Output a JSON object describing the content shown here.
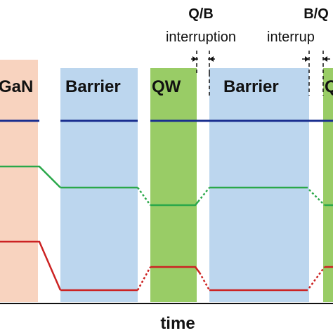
{
  "colors": {
    "gan_region": "#f8d3bf",
    "barrier_region": "#bcd6ee",
    "qw_region": "#99cc66",
    "line_blue": "#1a2f8f",
    "line_green": "#2aa84a",
    "line_red": "#cc2222",
    "axis": "#111111"
  },
  "regions": [
    {
      "key": "gan",
      "label": "GaN",
      "color_key": "gan_region"
    },
    {
      "key": "barrier1",
      "label": "Barrier",
      "color_key": "barrier_region"
    },
    {
      "key": "qw1",
      "label": "QW",
      "color_key": "qw_region"
    },
    {
      "key": "barrier2",
      "label": "Barrier",
      "color_key": "barrier_region"
    },
    {
      "key": "qw2",
      "label": "Q",
      "color_key": "qw_region"
    }
  ],
  "interruptions": {
    "qb": {
      "line1": "Q/B",
      "line2": "interruption"
    },
    "bq": {
      "line1": "B/Q",
      "line2": "interrup"
    }
  },
  "axis": {
    "label": "time"
  }
}
